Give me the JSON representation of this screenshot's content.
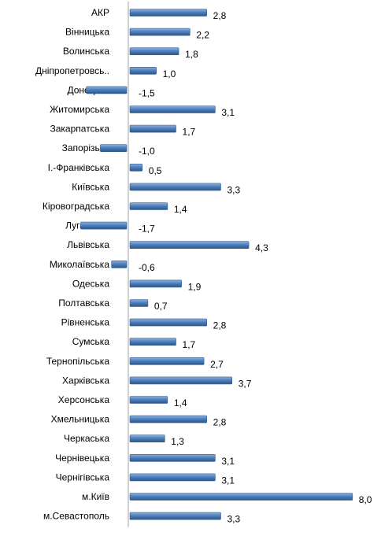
{
  "chart_data": {
    "type": "bar",
    "orientation": "horizontal",
    "categories": [
      "АКР",
      "Вінницька",
      "Волинська",
      "Дніпропетровсь..",
      "Донецька",
      "Житомирська",
      "Закарпатська",
      "Запорізька",
      "І.-Франківська",
      "Київська",
      "Кіровоградська",
      "Луганська",
      "Львівська",
      "Миколаївська",
      "Одеська",
      "Полтавська",
      "Рівненська",
      "Сумська",
      "Тернопільська",
      "Харківська",
      "Херсонська",
      "Хмельницька",
      "Черкаська",
      "Чернівецька",
      "Чернігівська",
      "м.Київ",
      "м.Севастополь"
    ],
    "values": [
      2.8,
      2.2,
      1.8,
      1.0,
      -1.5,
      3.1,
      1.7,
      -1.0,
      0.5,
      3.3,
      1.4,
      -1.7,
      4.3,
      -0.6,
      1.9,
      0.7,
      2.8,
      1.7,
      2.7,
      3.7,
      1.4,
      2.8,
      1.3,
      3.1,
      3.1,
      8.0,
      3.3
    ],
    "value_labels": [
      "2,8",
      "2,2",
      "1,8",
      "1,0",
      "-1,5",
      "3,1",
      "1,7",
      "-1,0",
      "0,5",
      "3,3",
      "1,4",
      "-1,7",
      "4,3",
      "-0,6",
      "1,9",
      "0,7",
      "2,8",
      "1,7",
      "2,7",
      "3,7",
      "1,4",
      "2,8",
      "1,3",
      "3,1",
      "3,1",
      "8,0",
      "3,3"
    ],
    "title": "",
    "xlabel": "",
    "ylabel": "",
    "xlim": [
      -1.7,
      8.0
    ],
    "grid": false,
    "legend": "none",
    "bar_color": "#4a7ebb",
    "axis_color": "#a0a0a0"
  }
}
